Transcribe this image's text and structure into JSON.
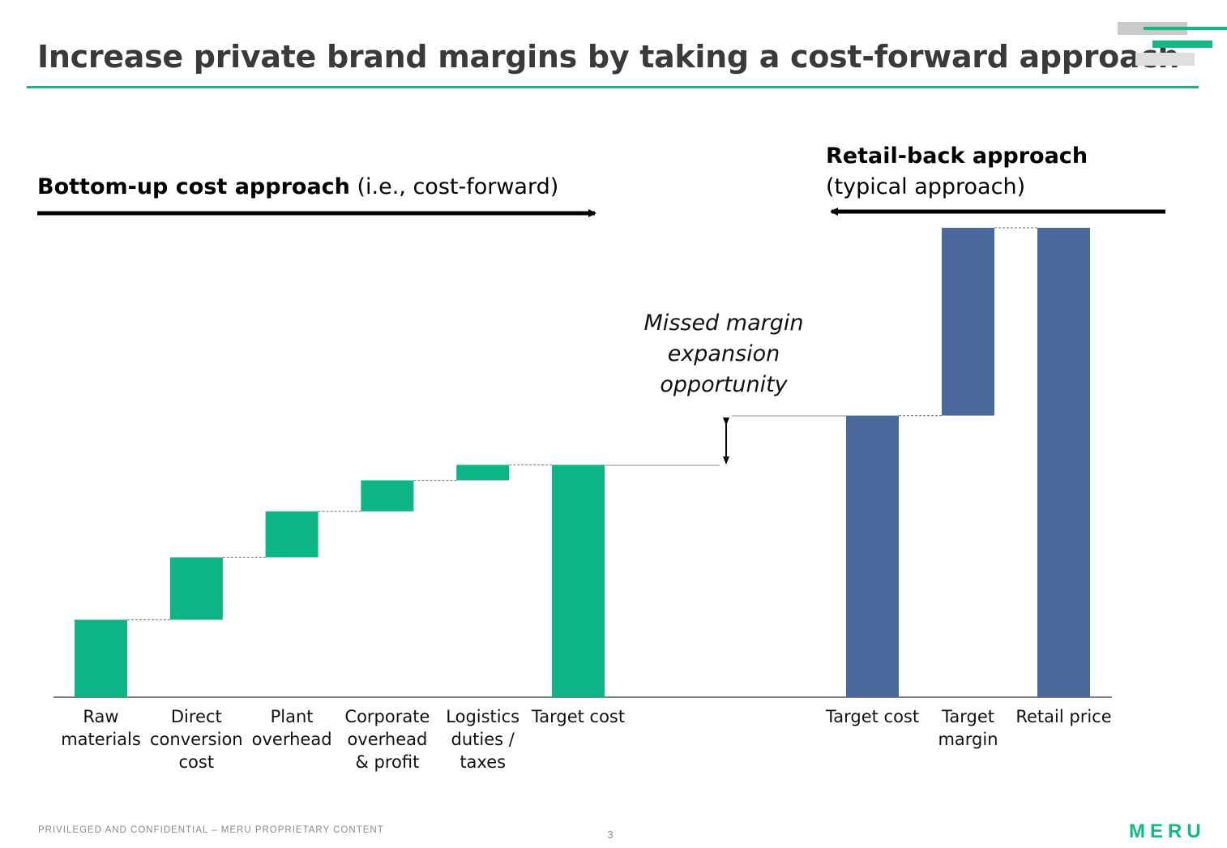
{
  "title": "Increase private brand margins by taking a cost-forward approach",
  "sections": {
    "bottom_up": {
      "bold": "Bottom-up cost approach",
      "light": " (i.e., cost-forward)"
    },
    "retail_back": {
      "bold": "Retail-back approach",
      "light": "(typical approach)"
    }
  },
  "annotation": [
    "Missed margin",
    "expansion",
    "opportunity"
  ],
  "footer": {
    "confidential": "PRIVILEGED AND CONFIDENTIAL – MERU PROPRIETARY CONTENT",
    "page": "3",
    "logo": "MERU"
  },
  "colors": {
    "green": "#0db586",
    "blue": "#4a6a9b",
    "accent": "#12b886"
  },
  "chart_data": [
    {
      "type": "bar",
      "subtype": "waterfall",
      "name": "bottom-up cost approach",
      "ylim": [
        0,
        100
      ],
      "categories": [
        [
          "Raw",
          "materials"
        ],
        [
          "Direct",
          "conversion",
          "cost"
        ],
        [
          "Plant",
          "overhead"
        ],
        [
          "Corporate",
          "overhead",
          "& profit"
        ],
        [
          "Logistics",
          "duties /",
          "taxes"
        ],
        [
          "Target cost"
        ]
      ],
      "steps": [
        {
          "start": 0,
          "end": 16.5
        },
        {
          "start": 16.5,
          "end": 29.8
        },
        {
          "start": 29.8,
          "end": 39.6
        },
        {
          "start": 39.6,
          "end": 46.2
        },
        {
          "start": 46.2,
          "end": 49.5
        },
        {
          "start": 0,
          "end": 49.5,
          "total": true
        }
      ],
      "color": "#0db586"
    },
    {
      "type": "bar",
      "subtype": "waterfall",
      "name": "retail-back approach",
      "ylim": [
        0,
        100
      ],
      "categories": [
        [
          "Target cost"
        ],
        [
          "Target",
          "margin"
        ],
        [
          "Retail price"
        ]
      ],
      "steps": [
        {
          "start": 0,
          "end": 60,
          "total": true
        },
        {
          "start": 60,
          "end": 100
        },
        {
          "start": 0,
          "end": 100,
          "total": true
        }
      ],
      "color": "#4a6a9b"
    }
  ]
}
